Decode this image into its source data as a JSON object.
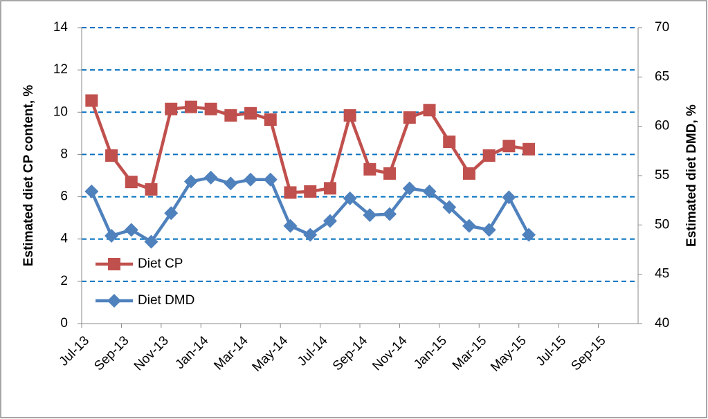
{
  "chart_data": {
    "type": "line",
    "y_label": "Estimated diet CP content, %",
    "y2_label": "Estimated diet DMD, %",
    "x": [
      "Jul-13",
      "Aug-13",
      "Sep-13",
      "Oct-13",
      "Nov-13",
      "Dec-13",
      "Jan-14",
      "Feb-14",
      "Mar-14",
      "Apr-14",
      "May-14",
      "Jun-14",
      "Jul-14",
      "Aug-14",
      "Sep-14",
      "Oct-14",
      "Nov-14",
      "Dec-14",
      "Jan-15",
      "Feb-15",
      "Mar-15",
      "Apr-15",
      "May-15"
    ],
    "xlim": [
      "Jul-13",
      "Nov-15"
    ],
    "xticks": [
      "Jul-13",
      "Sep-13",
      "Nov-13",
      "Jan-14",
      "Mar-14",
      "May-14",
      "Jul-14",
      "Sep-14",
      "Nov-14",
      "Jan-15",
      "Mar-15",
      "May-15",
      "Jul-15",
      "Sep-15"
    ],
    "ylim": [
      0,
      14
    ],
    "yticks": [
      0,
      2,
      4,
      6,
      8,
      10,
      12,
      14
    ],
    "y2lim": [
      40,
      70
    ],
    "y2ticks": [
      40,
      45,
      50,
      55,
      60,
      65,
      70
    ],
    "grid": true,
    "legend": "left",
    "series": [
      {
        "name": "Diet CP",
        "color": "#c0504d",
        "marker": "square",
        "values": [
          10.55,
          7.95,
          6.7,
          6.35,
          10.15,
          10.25,
          10.15,
          9.85,
          9.95,
          9.65,
          6.2,
          6.25,
          6.4,
          9.85,
          7.3,
          7.1,
          9.75,
          10.1,
          8.6,
          7.1,
          7.95,
          8.4,
          8.25
        ]
      },
      {
        "name": "Diet DMD",
        "color": "#4f81bd",
        "marker": "diamond",
        "axis": "y2",
        "values": [
          53.4,
          48.9,
          49.5,
          48.3,
          51.2,
          54.4,
          54.8,
          54.2,
          54.6,
          54.6,
          49.9,
          49.0,
          50.4,
          52.7,
          51.0,
          51.1,
          53.7,
          53.4,
          51.8,
          49.9,
          49.5,
          52.8,
          49.0
        ]
      }
    ]
  }
}
